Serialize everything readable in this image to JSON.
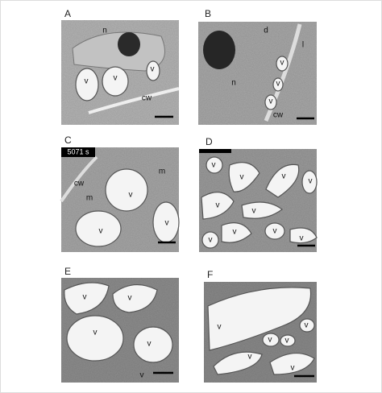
{
  "panels": [
    {
      "label": "A",
      "annotations": [
        "n",
        "v",
        "v",
        "v",
        "cw"
      ]
    },
    {
      "label": "B",
      "annotations": [
        "d",
        "n",
        "v",
        "v",
        "v",
        "l",
        "cw"
      ]
    },
    {
      "label": "C",
      "annotations": [
        "5071 s",
        "cw",
        "m",
        "m",
        "v",
        "v",
        "v"
      ]
    },
    {
      "label": "D",
      "annotations": [
        "v",
        "v",
        "v",
        "v",
        "v",
        "v",
        "v",
        "v",
        "v",
        "v"
      ]
    },
    {
      "label": "E",
      "annotations": [
        "v",
        "v",
        "v",
        "v",
        "v"
      ]
    },
    {
      "label": "F",
      "annotations": [
        "v",
        "v",
        "v",
        "v",
        "v",
        "v"
      ]
    }
  ]
}
